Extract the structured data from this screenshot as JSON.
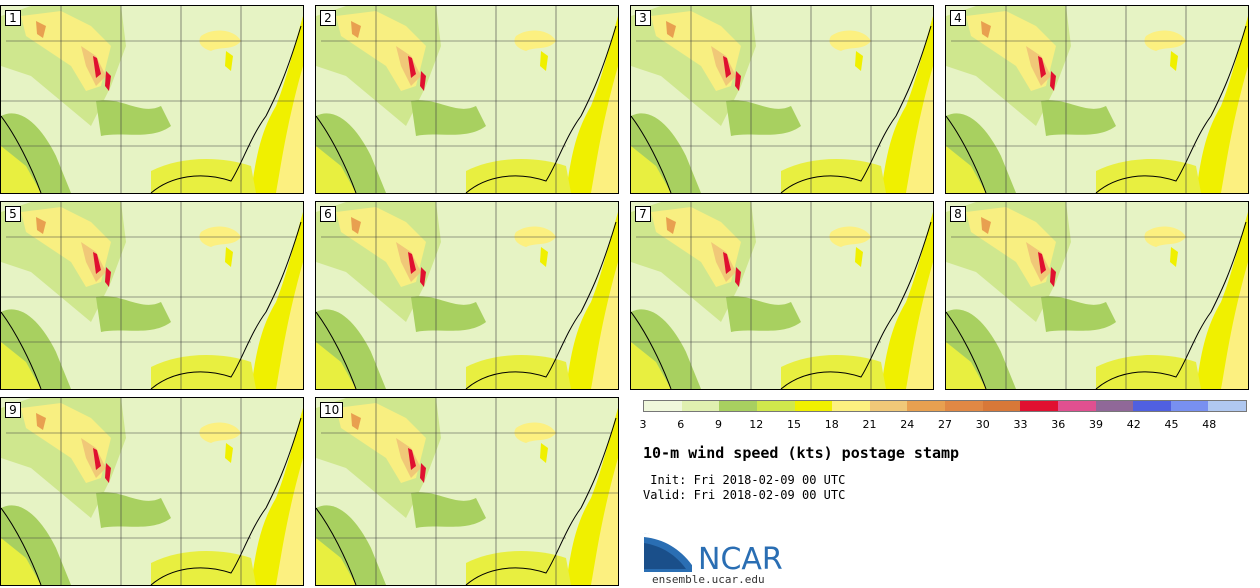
{
  "figure": {
    "title": "10-m wind speed (kts) postage stamp",
    "init_label": " Init:",
    "init_value": "Fri 2018-02-09 00 UTC",
    "valid_label": "Valid:",
    "valid_value": "Fri 2018-02-09 00 UTC"
  },
  "members": [
    {
      "label": "1"
    },
    {
      "label": "2"
    },
    {
      "label": "3"
    },
    {
      "label": "4"
    },
    {
      "label": "5"
    },
    {
      "label": "6"
    },
    {
      "label": "7"
    },
    {
      "label": "8"
    },
    {
      "label": "9"
    },
    {
      "label": "10"
    }
  ],
  "colorbar": {
    "ticks": [
      "3",
      "6",
      "9",
      "12",
      "15",
      "18",
      "21",
      "24",
      "27",
      "30",
      "33",
      "36",
      "39",
      "42",
      "45",
      "48"
    ],
    "colors": [
      "#f0f8dc",
      "#e0f0b0",
      "#a8d060",
      "#d0e84c",
      "#f0f000",
      "#fcf080",
      "#f0c878",
      "#e8a050",
      "#e08844",
      "#d87838",
      "#e01030",
      "#e05090",
      "#906898",
      "#5060e0",
      "#7890f0",
      "#b0c8f0"
    ]
  },
  "branding": {
    "logo_text": "NCAR",
    "url": "ensemble.ucar.edu"
  }
}
